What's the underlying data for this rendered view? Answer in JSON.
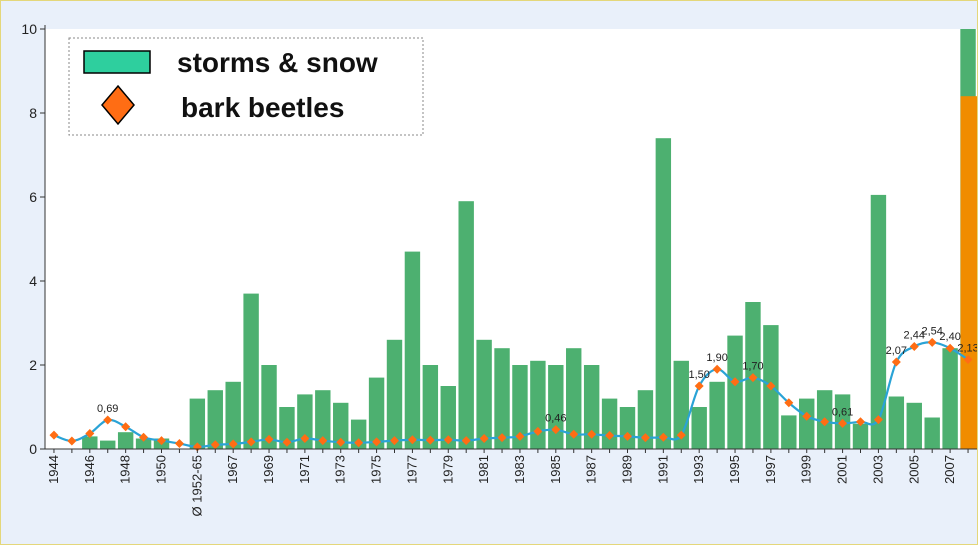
{
  "chart_data": {
    "type": "bar",
    "ylim": [
      0,
      10
    ],
    "yticks": [
      "0",
      "2",
      "4",
      "6",
      "8",
      "10"
    ],
    "grid": false,
    "legend": "top-left",
    "colors": {
      "storms": "#4db070",
      "legend_swatch": "#2ecf9e",
      "beetle_marker": "#ff6d14",
      "beetle_line": "#2aa3d6",
      "last_bar": "#f08c00",
      "background": "#e9f0fa",
      "plot_background": "#ffffff"
    },
    "categories": [
      "1944",
      "1945",
      "1946",
      "1947",
      "1948",
      "1949",
      "1950",
      "1951",
      "Ø 1952-65",
      "1966",
      "1967",
      "1968",
      "1969",
      "1970",
      "1971",
      "1972",
      "1973",
      "1974",
      "1975",
      "1976",
      "1977",
      "1978",
      "1979",
      "1980",
      "1981",
      "1982",
      "1983",
      "1984",
      "1985",
      "1986",
      "1987",
      "1988",
      "1989",
      "1990",
      "1991",
      "1992",
      "1993",
      "1994",
      "1995",
      "1996",
      "1997",
      "1998",
      "1999",
      "2000",
      "2001",
      "2002",
      "2003",
      "2004",
      "2005",
      "2006",
      "2007",
      "2008"
    ],
    "x_tick_labels": [
      "1944",
      "",
      "1946",
      "",
      "1948",
      "",
      "1950",
      "",
      "Ø 1952-65",
      "",
      "1967",
      "",
      "1969",
      "",
      "1971",
      "",
      "1973",
      "",
      "1975",
      "",
      "1977",
      "",
      "1979",
      "",
      "1981",
      "",
      "1983",
      "",
      "1985",
      "",
      "1987",
      "",
      "1989",
      "",
      "1991",
      "",
      "1993",
      "",
      "1995",
      "",
      "1997",
      "",
      "1999",
      "",
      "2001",
      "",
      "2003",
      "",
      "2005",
      "",
      "2007",
      ""
    ],
    "series": [
      {
        "name": "storms & snow",
        "type": "bar",
        "values": [
          0.0,
          0.0,
          0.3,
          0.2,
          0.4,
          0.25,
          0.25,
          0.0,
          1.2,
          1.4,
          1.6,
          3.7,
          2.0,
          1.0,
          1.3,
          1.4,
          1.1,
          0.7,
          1.7,
          2.6,
          4.7,
          2.0,
          1.5,
          5.9,
          2.6,
          2.4,
          2.0,
          2.1,
          2.0,
          2.4,
          2.0,
          1.2,
          1.0,
          1.4,
          7.4,
          2.1,
          1.0,
          1.6,
          2.7,
          3.5,
          2.95,
          0.8,
          1.2,
          1.4,
          1.3,
          0.6,
          6.05,
          1.25,
          1.1,
          0.75,
          2.4,
          10.0
        ]
      },
      {
        "name": "bark beetles",
        "type": "line",
        "values": [
          0.33,
          0.19,
          0.37,
          0.69,
          0.53,
          0.28,
          0.2,
          0.13,
          0.05,
          0.1,
          0.12,
          0.17,
          0.23,
          0.16,
          0.25,
          0.2,
          0.16,
          0.15,
          0.17,
          0.2,
          0.22,
          0.21,
          0.22,
          0.2,
          0.25,
          0.27,
          0.3,
          0.42,
          0.46,
          0.35,
          0.35,
          0.32,
          0.3,
          0.27,
          0.28,
          0.33,
          1.5,
          1.9,
          1.6,
          1.7,
          1.5,
          1.1,
          0.78,
          0.65,
          0.61,
          0.65,
          0.7,
          2.07,
          2.44,
          2.54,
          2.4,
          2.13
        ]
      }
    ],
    "last_value_bar": 8.4,
    "data_labels": [
      {
        "index": 3,
        "text": "0,69"
      },
      {
        "index": 28,
        "text": "0,46"
      },
      {
        "index": 36,
        "text": "1,50"
      },
      {
        "index": 37,
        "text": "1,90"
      },
      {
        "index": 39,
        "text": "1,70"
      },
      {
        "index": 44,
        "text": "0,61"
      },
      {
        "index": 47,
        "text": "2,07"
      },
      {
        "index": 48,
        "text": "2,44"
      },
      {
        "index": 49,
        "text": "2,54"
      },
      {
        "index": 50,
        "text": "2,40"
      },
      {
        "index": 51,
        "text": "2,13"
      }
    ],
    "legend_labels": {
      "storms": "storms & snow",
      "beetles": "bark beetles"
    }
  }
}
